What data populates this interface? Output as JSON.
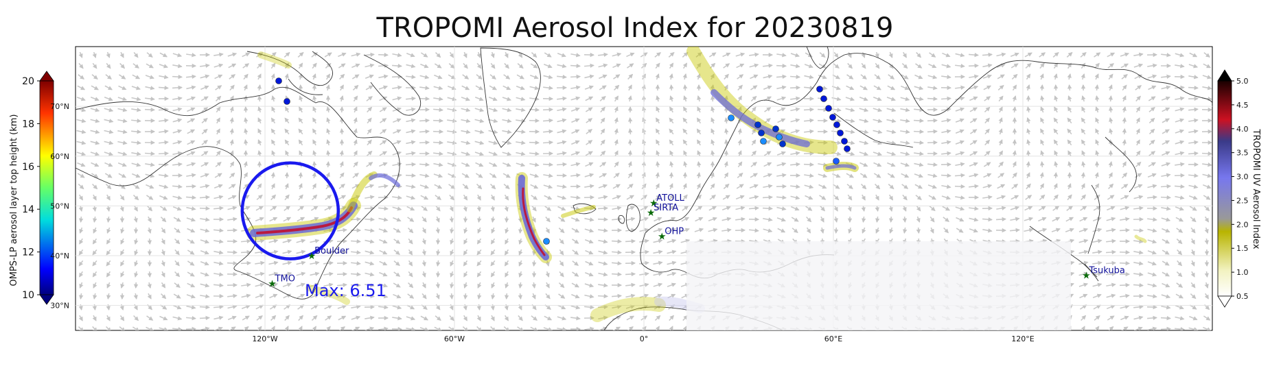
{
  "title": "TROPOMI Aerosol Index for 20230819",
  "left_colorbar": {
    "label": "OMPS-LP aerosol layer top height (km)",
    "ticks": [
      "20",
      "18",
      "16",
      "14",
      "12",
      "10"
    ],
    "range": [
      10,
      20
    ]
  },
  "right_colorbar": {
    "label": "TROPOMI UV Aerosol Index",
    "ticks": [
      "5.0",
      "4.5",
      "4.0",
      "3.5",
      "3.0",
      "2.5",
      "2.0",
      "1.5",
      "1.0",
      "0.5"
    ],
    "range": [
      0.5,
      5.0
    ]
  },
  "lat_labels": [
    "70°N",
    "60°N",
    "50°N",
    "40°N",
    "30°N"
  ],
  "lon_labels": [
    "120°W",
    "60°W",
    "0°",
    "60°E",
    "120°E"
  ],
  "stations": [
    {
      "name": "TMO",
      "lon": -117.7,
      "lat": 34.4
    },
    {
      "name": "Boulder",
      "lon": -105.2,
      "lat": 40.0
    },
    {
      "name": "ATOLL",
      "lon": 3.1,
      "lat": 50.6
    },
    {
      "name": "SIRTA",
      "lon": 2.2,
      "lat": 48.7
    },
    {
      "name": "OHP",
      "lon": 5.7,
      "lat": 43.9
    },
    {
      "name": "Tsukuba",
      "lon": 140.1,
      "lat": 36.1
    }
  ],
  "max_annotation": "Max: 6.51",
  "circle": {
    "lon": -112,
    "lat": 49,
    "radius_deg": 15,
    "color": "#1a1aee"
  },
  "plume_colors": {
    "low": "#c8c800",
    "mid": "#6a6ad8",
    "high": "#c01030"
  }
}
